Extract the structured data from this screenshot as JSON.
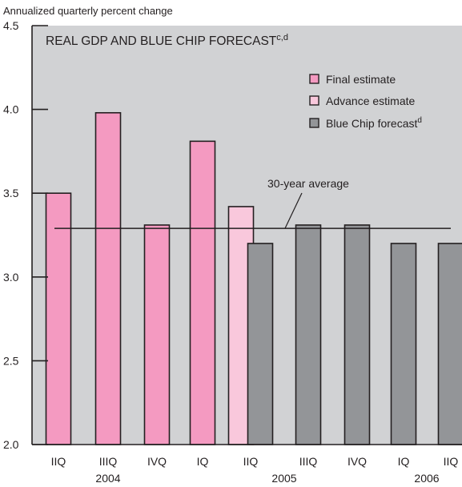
{
  "chart_data": {
    "type": "bar",
    "title": "REAL GDP AND BLUE CHIP FORECAST",
    "title_superscript": "c,d",
    "ylabel": "Annualized quarterly percent change",
    "xlabel": "",
    "ylim": [
      2.0,
      4.5
    ],
    "yticks": [
      "2.0",
      "2.5",
      "3.0",
      "3.5",
      "4.0",
      "4.5"
    ],
    "grid": false,
    "background_color": "#d1d2d4",
    "legend_position": "top-right",
    "categories": [
      "IIQ",
      "IIIQ",
      "IVQ",
      "IQ",
      "IIQ",
      "IIQ",
      "IIIQ",
      "IVQ",
      "IQ",
      "IIQ"
    ],
    "year_labels": [
      "2004",
      "2005",
      "2006"
    ],
    "series": [
      {
        "name": "Final estimate",
        "color": "#f49ac1",
        "values": [
          3.5,
          3.98,
          3.31,
          3.81,
          null,
          null,
          null,
          null,
          null,
          null
        ]
      },
      {
        "name": "Advance estimate",
        "color": "#f9c8dc",
        "values": [
          null,
          null,
          null,
          null,
          3.42,
          null,
          null,
          null,
          null,
          null
        ]
      },
      {
        "name": "Blue Chip forecast",
        "name_superscript": "d",
        "color": "#939598",
        "values": [
          null,
          null,
          null,
          null,
          null,
          3.2,
          3.31,
          3.31,
          3.2,
          3.2
        ]
      }
    ],
    "reference_line": {
      "label": "30-year average",
      "value": 3.29
    }
  }
}
